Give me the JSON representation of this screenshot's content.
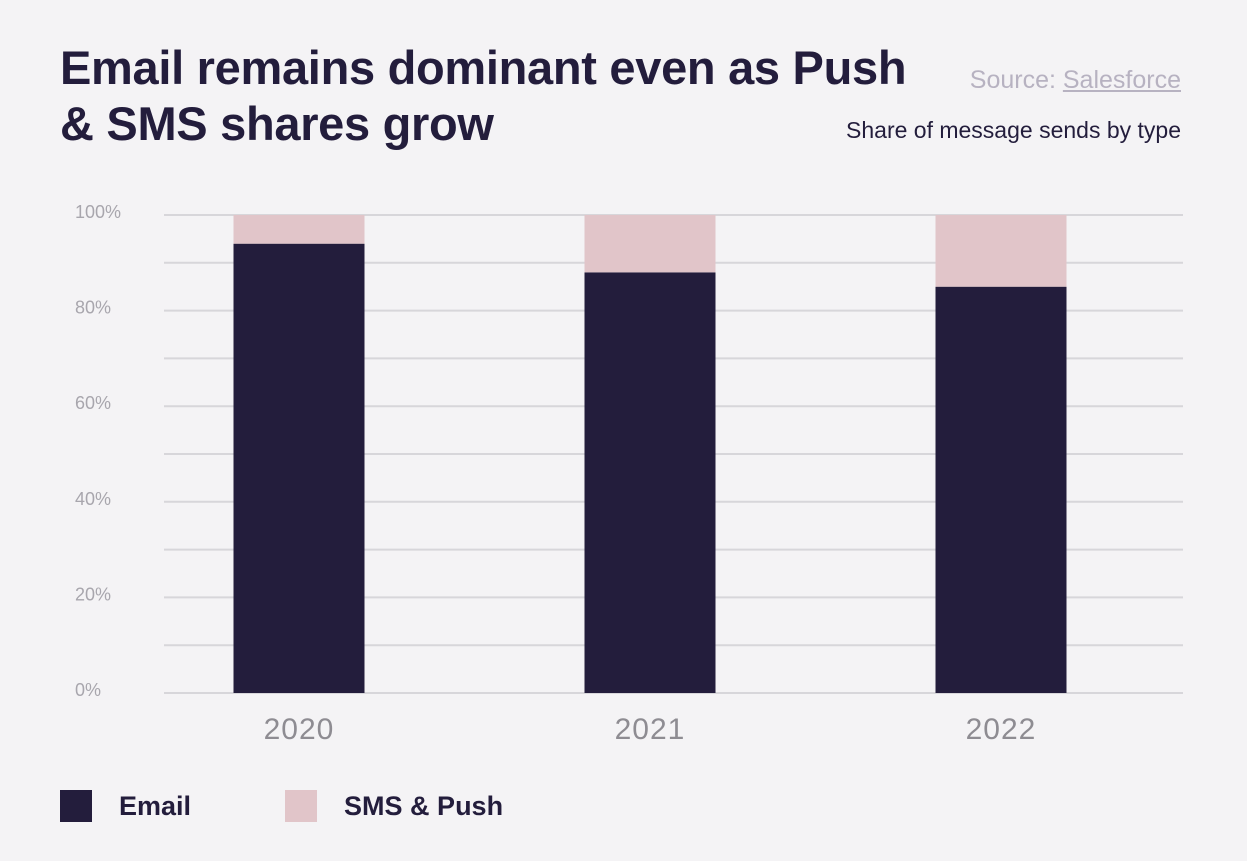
{
  "header": {
    "title": "Email remains dominant even as Push & SMS shares grow",
    "source_prefix": "Source: ",
    "source_link": "Salesforce",
    "subtitle": "Share of message sends by type"
  },
  "chart_data": {
    "type": "bar",
    "stacked": true,
    "title": "Email remains dominant even as Push & SMS shares grow",
    "subtitle": "Share of message sends by type",
    "categories": [
      "2020",
      "2021",
      "2022"
    ],
    "series": [
      {
        "name": "Email",
        "color": "#231d3c",
        "values": [
          94,
          88,
          85
        ]
      },
      {
        "name": "SMS & Push",
        "color": "#e1c5c9",
        "values": [
          6,
          12,
          15
        ]
      }
    ],
    "ylim": [
      0,
      100
    ],
    "yticks": [
      "0%",
      "20%",
      "40%",
      "60%",
      "80%",
      "100%"
    ],
    "ytick_values": [
      0,
      20,
      40,
      60,
      80,
      100
    ],
    "grid": true,
    "grid_step": 10,
    "xlabel": "",
    "ylabel": "",
    "legend_position": "bottom-left"
  },
  "colors": {
    "background": "#f4f3f5",
    "email": "#231d3c",
    "sms_push": "#e1c5c9",
    "grid": "#d7d6da"
  }
}
